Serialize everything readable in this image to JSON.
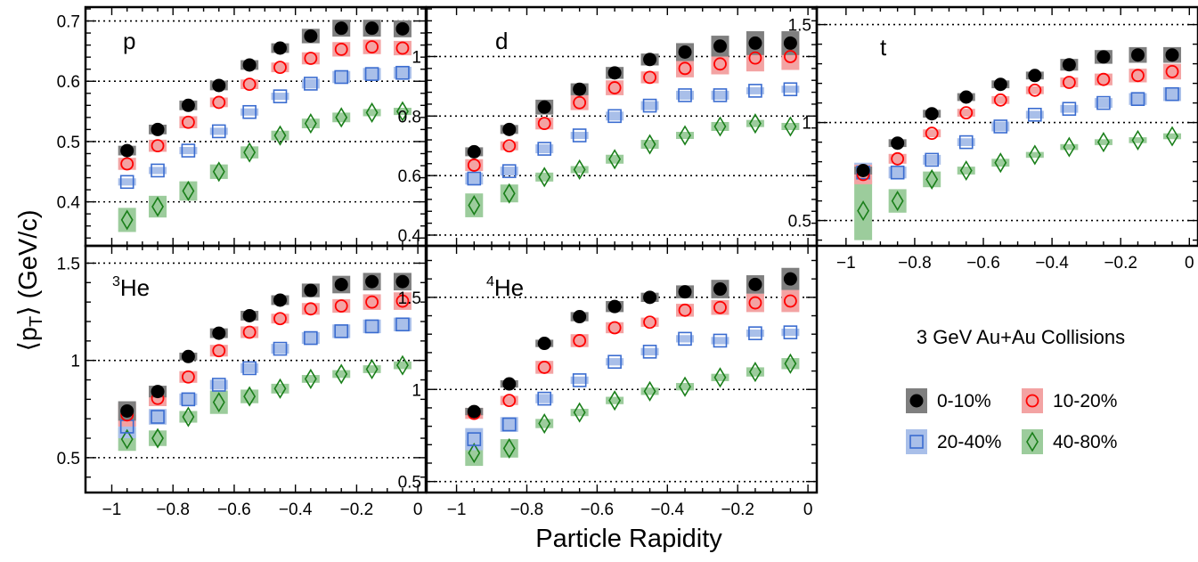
{
  "chart_data": {
    "type": "scatter",
    "title": "",
    "xlabel": "Particle Rapidity",
    "ylabel_main": "⟨p",
    "ylabel_sub": "T",
    "ylabel_tail": "⟩ (GeV/c)",
    "legend_title": "3 GeV Au+Au Collisions",
    "legend": [
      {
        "key": "c010",
        "label": "0-10%"
      },
      {
        "key": "c1020",
        "label": "10-20%"
      },
      {
        "key": "c2040",
        "label": "20-40%"
      },
      {
        "key": "c4080",
        "label": "40-80%"
      }
    ],
    "x": [
      -0.95,
      -0.85,
      -0.75,
      -0.65,
      -0.55,
      -0.45,
      -0.35,
      -0.25,
      -0.15,
      -0.05
    ],
    "xlim": [
      -1.08,
      0.02
    ],
    "xticks": [
      -1,
      -0.8,
      -0.6,
      -0.4,
      -0.2,
      0
    ],
    "xtick_labels": [
      "−1",
      "−0.8",
      "−0.6",
      "−0.4",
      "−0.2",
      "0"
    ],
    "panels": [
      {
        "id": "p",
        "label": "p",
        "label_sup": "",
        "ylim": [
          0.33,
          0.72
        ],
        "yticks": [
          0.4,
          0.5,
          0.6,
          0.7
        ],
        "ytick_labels": [
          "0.4",
          "0.5",
          "0.6",
          "0.7"
        ],
        "gridlines": [
          0.4,
          0.5,
          0.6,
          0.7
        ],
        "series": [
          {
            "key": "c010",
            "values": [
              0.485,
              0.52,
              0.56,
              0.593,
              0.627,
              0.655,
              0.675,
              0.688,
              0.688,
              0.687
            ],
            "sys": [
              0.008,
              0.008,
              0.008,
              0.008,
              0.008,
              0.008,
              0.012,
              0.014,
              0.014,
              0.014
            ]
          },
          {
            "key": "c1020",
            "values": [
              0.463,
              0.493,
              0.532,
              0.565,
              0.595,
              0.623,
              0.638,
              0.653,
              0.657,
              0.655
            ],
            "sys": [
              0.01,
              0.01,
              0.01,
              0.008,
              0.008,
              0.008,
              0.01,
              0.012,
              0.012,
              0.012
            ]
          },
          {
            "key": "c2040",
            "values": [
              0.433,
              0.452,
              0.485,
              0.517,
              0.549,
              0.575,
              0.596,
              0.607,
              0.612,
              0.614
            ],
            "sys": [
              0.006,
              0.006,
              0.006,
              0.006,
              0.006,
              0.006,
              0.008,
              0.01,
              0.01,
              0.01
            ]
          },
          {
            "key": "c4080",
            "values": [
              0.37,
              0.392,
              0.418,
              0.45,
              0.482,
              0.51,
              0.53,
              0.54,
              0.548,
              0.55
            ],
            "sys": [
              0.02,
              0.018,
              0.016,
              0.012,
              0.01,
              0.008,
              0.008,
              0.008,
              0.006,
              0.006
            ]
          }
        ]
      },
      {
        "id": "d",
        "label": "d",
        "label_sup": "",
        "ylim": [
          0.37,
          1.16
        ],
        "yticks": [
          0.4,
          0.6,
          0.8,
          1.0
        ],
        "ytick_labels": [
          "0.4",
          "0.6",
          "0.8",
          "1"
        ],
        "gridlines": [
          0.4,
          0.6,
          0.8,
          1.0
        ],
        "series": [
          {
            "key": "c010",
            "values": [
              0.68,
              0.755,
              0.83,
              0.89,
              0.945,
              0.99,
              1.015,
              1.035,
              1.045,
              1.045
            ],
            "sys": [
              0.015,
              0.015,
              0.025,
              0.02,
              0.02,
              0.02,
              0.03,
              0.035,
              0.04,
              0.04
            ]
          },
          {
            "key": "c1020",
            "values": [
              0.635,
              0.7,
              0.775,
              0.845,
              0.895,
              0.93,
              0.96,
              0.975,
              0.995,
              1.0
            ],
            "sys": [
              0.02,
              0.015,
              0.02,
              0.025,
              0.025,
              0.02,
              0.03,
              0.035,
              0.045,
              0.045
            ]
          },
          {
            "key": "c2040",
            "values": [
              0.59,
              0.615,
              0.69,
              0.735,
              0.8,
              0.835,
              0.87,
              0.87,
              0.885,
              0.89
            ],
            "sys": [
              0.02,
              0.015,
              0.015,
              0.012,
              0.015,
              0.015,
              0.015,
              0.015,
              0.012,
              0.012
            ]
          },
          {
            "key": "c4080",
            "values": [
              0.5,
              0.54,
              0.595,
              0.62,
              0.655,
              0.705,
              0.735,
              0.765,
              0.775,
              0.765
            ],
            "sys": [
              0.04,
              0.03,
              0.015,
              0.012,
              0.015,
              0.015,
              0.012,
              0.015,
              0.012,
              0.012
            ]
          }
        ]
      },
      {
        "id": "t",
        "label": "t",
        "label_sup": "",
        "ylim": [
          0.38,
          1.58
        ],
        "yticks": [
          0.5,
          1.0,
          1.5
        ],
        "ytick_labels": [
          "0.5",
          "1",
          "1.5"
        ],
        "gridlines": [
          0.5,
          1.0,
          1.5
        ],
        "series": [
          {
            "key": "c010",
            "values": [
              0.755,
              0.895,
              1.045,
              1.13,
              1.195,
              1.24,
              1.295,
              1.335,
              1.345,
              1.345
            ],
            "sys": [
              0.02,
              0.02,
              0.02,
              0.02,
              0.02,
              0.02,
              0.03,
              0.035,
              0.04,
              0.04
            ]
          },
          {
            "key": "c1020",
            "values": [
              0.735,
              0.815,
              0.945,
              1.05,
              1.115,
              1.165,
              1.205,
              1.22,
              1.24,
              1.26
            ],
            "sys": [
              0.05,
              0.025,
              0.02,
              0.02,
              0.02,
              0.02,
              0.025,
              0.03,
              0.035,
              0.04
            ]
          },
          {
            "key": "c2040",
            "values": [
              0.745,
              0.745,
              0.81,
              0.9,
              0.98,
              1.04,
              1.07,
              1.1,
              1.12,
              1.145
            ],
            "sys": [
              0.05,
              0.03,
              0.025,
              0.02,
              0.025,
              0.02,
              0.02,
              0.025,
              0.03,
              0.035
            ]
          },
          {
            "key": "c4080",
            "values": [
              0.55,
              0.6,
              0.71,
              0.755,
              0.795,
              0.835,
              0.875,
              0.9,
              0.91,
              0.93
            ],
            "sys": [
              0.15,
              0.06,
              0.04,
              0.02,
              0.02,
              0.015,
              0.015,
              0.015,
              0.015,
              0.015
            ]
          }
        ]
      },
      {
        "id": "he3",
        "label": "He",
        "label_sup": "3",
        "ylim": [
          0.33,
          1.58
        ],
        "yticks": [
          0.5,
          1.0,
          1.5
        ],
        "ytick_labels": [
          "0.5",
          "1",
          "1.5"
        ],
        "gridlines": [
          0.5,
          1.0,
          1.5
        ],
        "series": [
          {
            "key": "c010",
            "values": [
              0.74,
              0.84,
              1.02,
              1.14,
              1.23,
              1.31,
              1.36,
              1.39,
              1.405,
              1.405
            ],
            "sys": [
              0.05,
              0.03,
              0.02,
              0.025,
              0.025,
              0.025,
              0.035,
              0.045,
              0.045,
              0.045
            ]
          },
          {
            "key": "c1020",
            "values": [
              0.72,
              0.805,
              0.915,
              1.05,
              1.145,
              1.215,
              1.265,
              1.28,
              1.3,
              1.305
            ],
            "sys": [
              0.06,
              0.04,
              0.03,
              0.03,
              0.03,
              0.025,
              0.03,
              0.035,
              0.04,
              0.045
            ]
          },
          {
            "key": "c2040",
            "values": [
              0.66,
              0.71,
              0.8,
              0.875,
              0.96,
              1.06,
              1.115,
              1.15,
              1.175,
              1.185
            ],
            "sys": [
              0.06,
              0.04,
              0.03,
              0.025,
              0.025,
              0.025,
              0.03,
              0.035,
              0.035,
              0.035
            ]
          },
          {
            "key": "c4080",
            "values": [
              0.595,
              0.6,
              0.71,
              0.785,
              0.815,
              0.855,
              0.905,
              0.93,
              0.955,
              0.975
            ],
            "sys": [
              0.06,
              0.04,
              0.03,
              0.06,
              0.035,
              0.025,
              0.02,
              0.02,
              0.02,
              0.02
            ]
          }
        ]
      },
      {
        "id": "he4",
        "label": "He",
        "label_sup": "4",
        "ylim": [
          0.45,
          1.77
        ],
        "yticks": [
          0.5,
          1.0,
          1.5
        ],
        "ytick_labels": [
          "0.5",
          "1",
          "1.5"
        ],
        "gridlines": [
          0.5,
          1.0,
          1.5
        ],
        "series": [
          {
            "key": "c010",
            "values": [
              0.88,
              1.03,
              1.25,
              1.395,
              1.45,
              1.5,
              1.53,
              1.545,
              1.57,
              1.6
            ],
            "sys": [
              0.02,
              0.02,
              0.02,
              0.025,
              0.03,
              0.025,
              0.035,
              0.05,
              0.05,
              0.06
            ]
          },
          {
            "key": "c1020",
            "values": [
              0.87,
              0.94,
              1.12,
              1.265,
              1.335,
              1.365,
              1.43,
              1.445,
              1.47,
              1.48
            ],
            "sys": [
              0.03,
              0.025,
              0.035,
              0.035,
              0.03,
              0.025,
              0.035,
              0.04,
              0.05,
              0.06
            ]
          },
          {
            "key": "c2040",
            "values": [
              0.73,
              0.81,
              0.95,
              1.05,
              1.15,
              1.205,
              1.275,
              1.265,
              1.305,
              1.31
            ],
            "sys": [
              0.06,
              0.04,
              0.025,
              0.02,
              0.02,
              0.02,
              0.02,
              0.02,
              0.02,
              0.02
            ]
          },
          {
            "key": "c4080",
            "values": [
              0.655,
              0.68,
              0.815,
              0.875,
              0.94,
              0.99,
              1.015,
              1.065,
              1.095,
              1.14
            ],
            "sys": [
              0.07,
              0.05,
              0.025,
              0.02,
              0.02,
              0.02,
              0.02,
              0.02,
              0.025,
              0.03
            ]
          }
        ]
      }
    ]
  },
  "colors": {
    "c010": {
      "marker": "#000000",
      "band": "#7f7f7f"
    },
    "c1020": {
      "marker": "#ff0000",
      "band": "#f3a3a3"
    },
    "c2040": {
      "marker": "#3a6cd0",
      "band": "#a9bfe9"
    },
    "c4080": {
      "marker": "#1a7f1a",
      "band": "#9ccc9c"
    }
  }
}
